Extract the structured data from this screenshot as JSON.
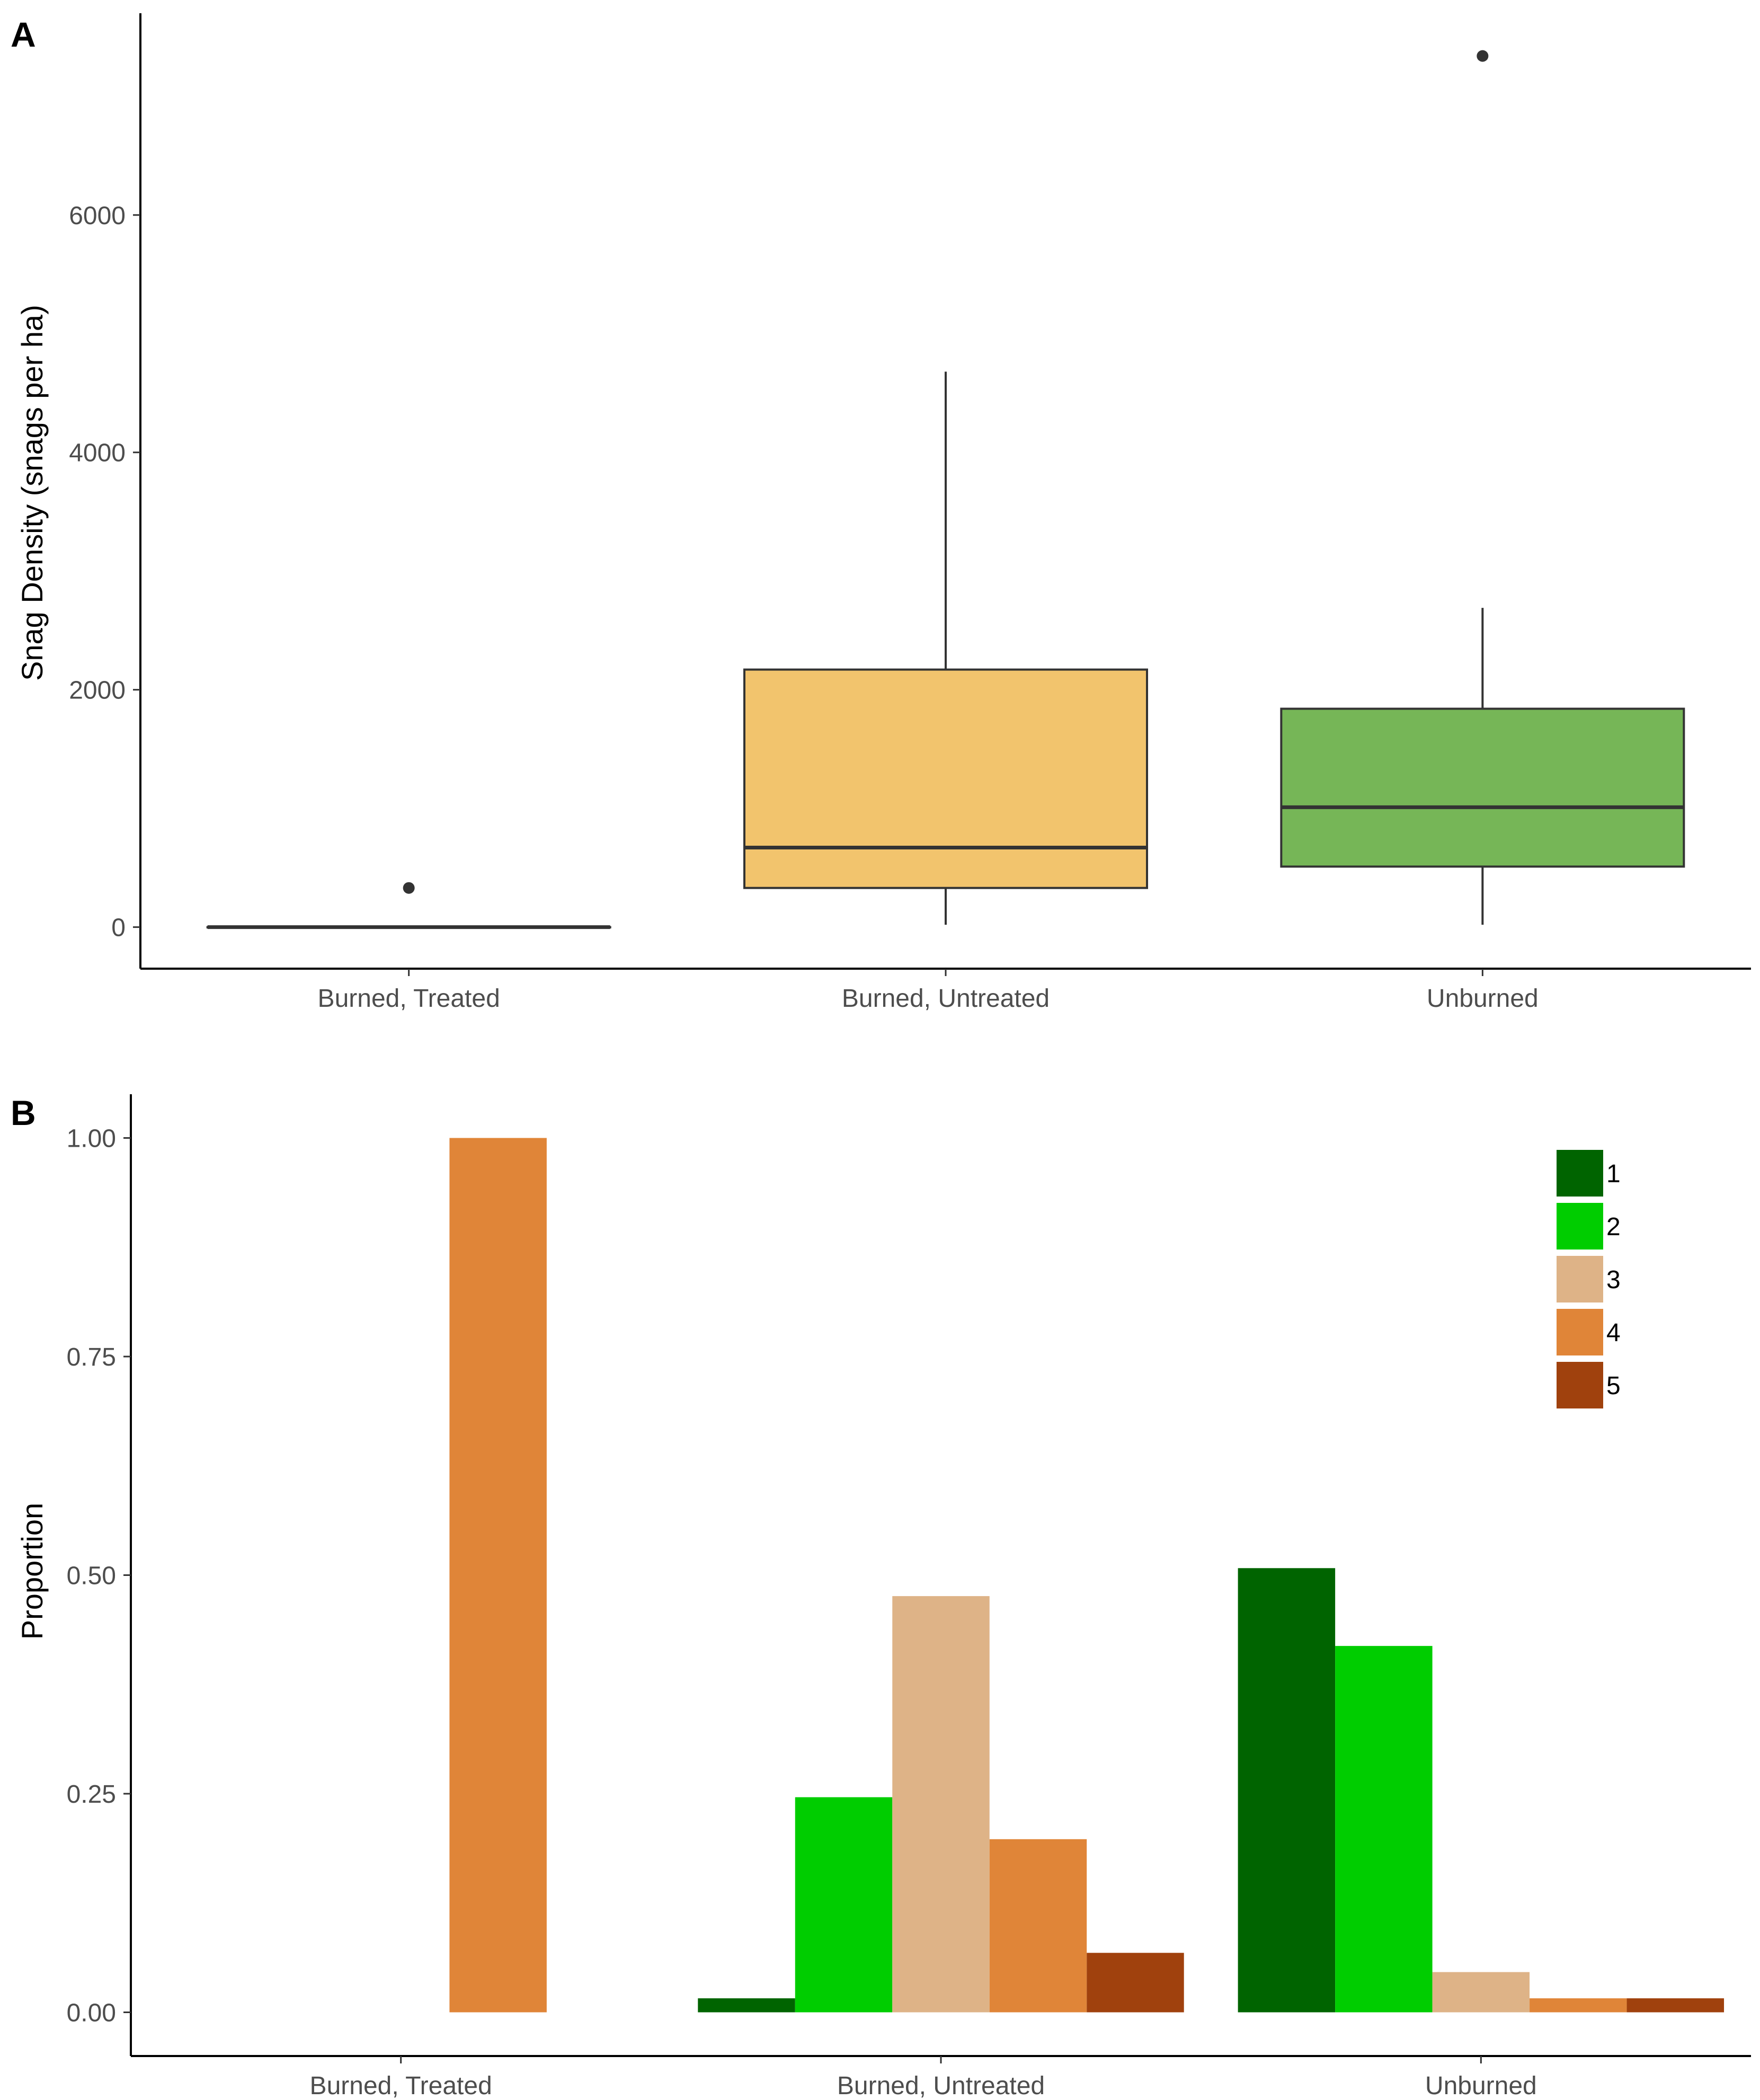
{
  "chart_data": [
    {
      "panel": "A",
      "type": "boxplot",
      "ylabel": "Snag Density (snags per ha)",
      "xlabel": "",
      "ylim": [
        -350,
        7700
      ],
      "yticks": [
        0,
        2000,
        4000,
        6000
      ],
      "ytick_labels": [
        "0",
        "2000",
        "4000",
        "6000"
      ],
      "categories": [
        "Burned, Treated",
        "Burned, Untreated",
        "Unburned"
      ],
      "boxes": [
        {
          "category": "Burned, Treated",
          "min": 0,
          "q1": 0,
          "median": 0,
          "q3": 0,
          "max": 0,
          "outliers": [
            330
          ],
          "fill": "#f2c46d"
        },
        {
          "category": "Burned, Untreated",
          "min": 20,
          "q1": 330,
          "median": 670,
          "q3": 2170,
          "max": 4680,
          "outliers": [],
          "fill": "#f2c46d"
        },
        {
          "category": "Unburned",
          "min": 20,
          "q1": 510,
          "median": 1010,
          "q3": 1840,
          "max": 2690,
          "outliers": [
            7340
          ],
          "fill": "#76b657"
        }
      ]
    },
    {
      "panel": "B",
      "type": "bar",
      "ylabel": "Proportion",
      "xlabel": "",
      "ylim": [
        -0.05,
        1.05
      ],
      "yticks": [
        0,
        0.25,
        0.5,
        0.75,
        1.0
      ],
      "ytick_labels": [
        "0.00",
        "0.25",
        "0.50",
        "0.75",
        "1.00"
      ],
      "categories": [
        "Burned, Treated",
        "Burned, Untreated",
        "Unburned"
      ],
      "series": [
        {
          "name": "1",
          "color": "#006400",
          "values": [
            0,
            0.016,
            0.508
          ]
        },
        {
          "name": "2",
          "color": "#00cd00",
          "values": [
            0,
            0.246,
            0.419
          ]
        },
        {
          "name": "3",
          "color": "#deb387",
          "values": [
            0,
            0.476,
            0.046
          ]
        },
        {
          "name": "4",
          "color": "#e08538",
          "values": [
            1.0,
            0.198,
            0.016
          ]
        },
        {
          "name": "5",
          "color": "#a0410d",
          "values": [
            0,
            0.068,
            0.016
          ]
        }
      ],
      "legend_position": "top-right"
    }
  ]
}
